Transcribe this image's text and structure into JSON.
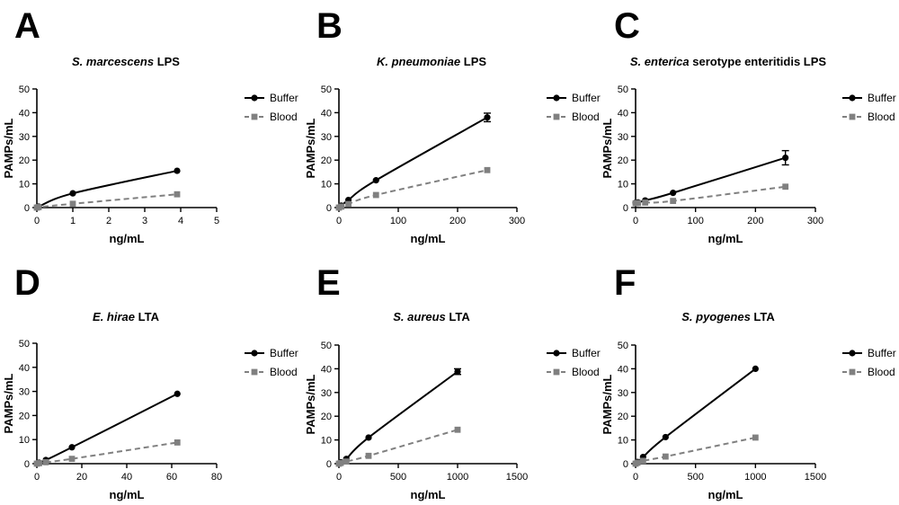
{
  "colors": {
    "buffer": "#000000",
    "blood": "#808080"
  },
  "legend": {
    "buffer": "Buffer",
    "blood": "Blood"
  },
  "chart_data": [
    {
      "type": "line",
      "letter": "A",
      "title_italic": "S. marcescens",
      "title_rest": " LPS",
      "xlabel": "ng/mL",
      "ylabel": "PAMPs/mL",
      "xlim": [
        0,
        5
      ],
      "ylim": [
        0,
        50
      ],
      "xticks": [
        0,
        1,
        2,
        3,
        4,
        5
      ],
      "yticks": [
        0,
        10,
        20,
        30,
        40,
        50
      ],
      "series": [
        {
          "name": "Buffer",
          "x": [
            0,
            0.05,
            1,
            3.9
          ],
          "y": [
            0,
            0.4,
            6,
            15.5
          ],
          "err": [
            0,
            0,
            0,
            0
          ]
        },
        {
          "name": "Blood",
          "x": [
            0,
            0.05,
            1,
            3.9
          ],
          "y": [
            0,
            0.2,
            1.6,
            5.6
          ],
          "err": [
            0,
            0,
            0,
            0
          ]
        }
      ]
    },
    {
      "type": "line",
      "letter": "B",
      "title_italic": "K. pneumoniae",
      "title_rest": " LPS",
      "xlabel": "ng/mL",
      "ylabel": "PAMPs/mL",
      "xlim": [
        0,
        300
      ],
      "ylim": [
        0,
        50
      ],
      "xticks": [
        0,
        100,
        200,
        300
      ],
      "yticks": [
        0,
        10,
        20,
        30,
        40,
        50
      ],
      "series": [
        {
          "name": "Buffer",
          "x": [
            0,
            4,
            16,
            62.5,
            250
          ],
          "y": [
            0,
            0.8,
            3.2,
            11.5,
            38
          ],
          "err": [
            0,
            0,
            0,
            0,
            1.8
          ]
        },
        {
          "name": "Blood",
          "x": [
            0,
            4,
            16,
            62.5,
            250
          ],
          "y": [
            0,
            0.4,
            1.5,
            5.3,
            15.8
          ],
          "err": [
            0,
            0,
            0,
            0,
            0
          ]
        }
      ]
    },
    {
      "type": "line",
      "letter": "C",
      "title_italic": "S. enterica",
      "title_rest": " serotype enteritidis LPS",
      "xlabel": "ng/mL",
      "ylabel": "PAMPs/mL",
      "xlim": [
        0,
        300
      ],
      "ylim": [
        0,
        50
      ],
      "xticks": [
        0,
        100,
        200,
        300
      ],
      "yticks": [
        0,
        10,
        20,
        30,
        40,
        50
      ],
      "series": [
        {
          "name": "Buffer",
          "x": [
            0,
            4,
            16,
            62.5,
            250
          ],
          "y": [
            2,
            2.2,
            3,
            6.2,
            21
          ],
          "err": [
            0,
            0,
            0,
            0,
            3
          ]
        },
        {
          "name": "Blood",
          "x": [
            0,
            4,
            16,
            62.5,
            250
          ],
          "y": [
            1.8,
            1.9,
            2.1,
            2.8,
            8.8
          ],
          "err": [
            0,
            0,
            0,
            0,
            0
          ]
        }
      ]
    },
    {
      "type": "line",
      "letter": "D",
      "title_italic": "E. hirae",
      "title_rest": " LTA",
      "xlabel": "ng/mL",
      "ylabel": "PAMPs/mL",
      "xlim": [
        0,
        80
      ],
      "ylim": [
        0,
        50
      ],
      "xticks": [
        0,
        20,
        40,
        60,
        80
      ],
      "yticks": [
        0,
        10,
        20,
        30,
        40,
        50
      ],
      "series": [
        {
          "name": "Buffer",
          "x": [
            0,
            1,
            4,
            15.6,
            62.5
          ],
          "y": [
            0,
            0.4,
            1.5,
            6.8,
            29
          ],
          "err": [
            0,
            0,
            0,
            0,
            0
          ]
        },
        {
          "name": "Blood",
          "x": [
            0,
            1,
            4,
            15.6,
            62.5
          ],
          "y": [
            0,
            0.2,
            0.6,
            2,
            8.8
          ],
          "err": [
            0,
            0,
            0,
            0,
            0
          ]
        }
      ]
    },
    {
      "type": "line",
      "letter": "E",
      "title_italic": "S. aureus",
      "title_rest": " LTA",
      "xlabel": "ng/mL",
      "ylabel": "PAMPs/mL",
      "xlim": [
        0,
        1500
      ],
      "ylim": [
        0,
        50
      ],
      "xticks": [
        0,
        500,
        1000,
        1500
      ],
      "yticks": [
        0,
        10,
        20,
        30,
        40,
        50
      ],
      "series": [
        {
          "name": "Buffer",
          "x": [
            0,
            15.6,
            62.5,
            250,
            1000
          ],
          "y": [
            0,
            0.6,
            2,
            11,
            38.8
          ],
          "err": [
            0,
            0,
            0,
            0,
            1.2
          ]
        },
        {
          "name": "Blood",
          "x": [
            0,
            15.6,
            62.5,
            250,
            1000
          ],
          "y": [
            0,
            0.3,
            0.9,
            3.3,
            14.3
          ],
          "err": [
            0,
            0,
            0,
            0,
            0
          ]
        }
      ]
    },
    {
      "type": "line",
      "letter": "F",
      "title_italic": "S. pyogenes",
      "title_rest": " LTA",
      "xlabel": "ng/mL",
      "ylabel": "PAMPs/mL",
      "xlim": [
        0,
        1500
      ],
      "ylim": [
        0,
        50
      ],
      "xticks": [
        0,
        500,
        1000,
        1500
      ],
      "yticks": [
        0,
        10,
        20,
        30,
        40,
        50
      ],
      "series": [
        {
          "name": "Buffer",
          "x": [
            0,
            15.6,
            62.5,
            250,
            1000
          ],
          "y": [
            0,
            0.7,
            2.8,
            11.2,
            40
          ],
          "err": [
            0,
            0,
            0,
            0,
            0
          ]
        },
        {
          "name": "Blood",
          "x": [
            0,
            15.6,
            62.5,
            250,
            1000
          ],
          "y": [
            0,
            0.4,
            1.2,
            3,
            11
          ],
          "err": [
            0,
            0,
            0,
            0,
            0
          ]
        }
      ]
    }
  ]
}
